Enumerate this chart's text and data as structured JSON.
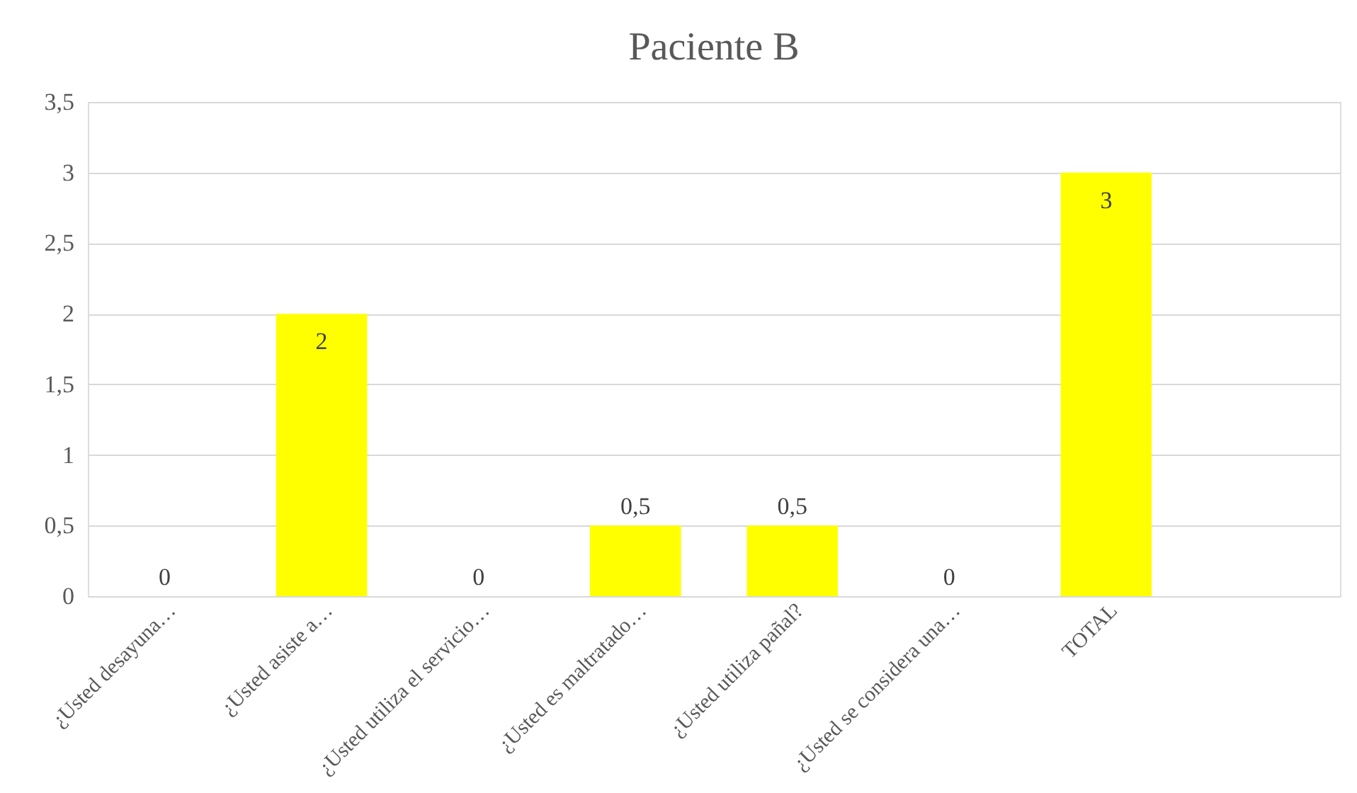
{
  "chart_data": {
    "type": "bar",
    "title": "Paciente B",
    "categories": [
      "¿Usted desayuna…",
      "¿Usted asiste a…",
      "¿Usted utiliza el servicio…",
      "¿Usted es maltratado…",
      "¿Usted utiliza pañal?",
      "¿Usted se considera una…",
      "TOTAL",
      null
    ],
    "values": [
      0,
      2,
      0,
      0.5,
      0.5,
      0,
      3,
      null
    ],
    "value_labels": [
      "0",
      "2",
      "0",
      "0,5",
      "0,5",
      "0",
      "3",
      null
    ],
    "color": "#ffff00",
    "ylim": [
      0,
      3.5
    ],
    "yticks": [
      0,
      {
        "value": 0.5,
        "label": "0,5"
      },
      1,
      {
        "value": 1.5,
        "label": "1,5"
      },
      2,
      {
        "value": 2.5,
        "label": "2,5"
      },
      3,
      {
        "value": 3.5,
        "label": "3,5"
      }
    ],
    "grid": "y"
  }
}
